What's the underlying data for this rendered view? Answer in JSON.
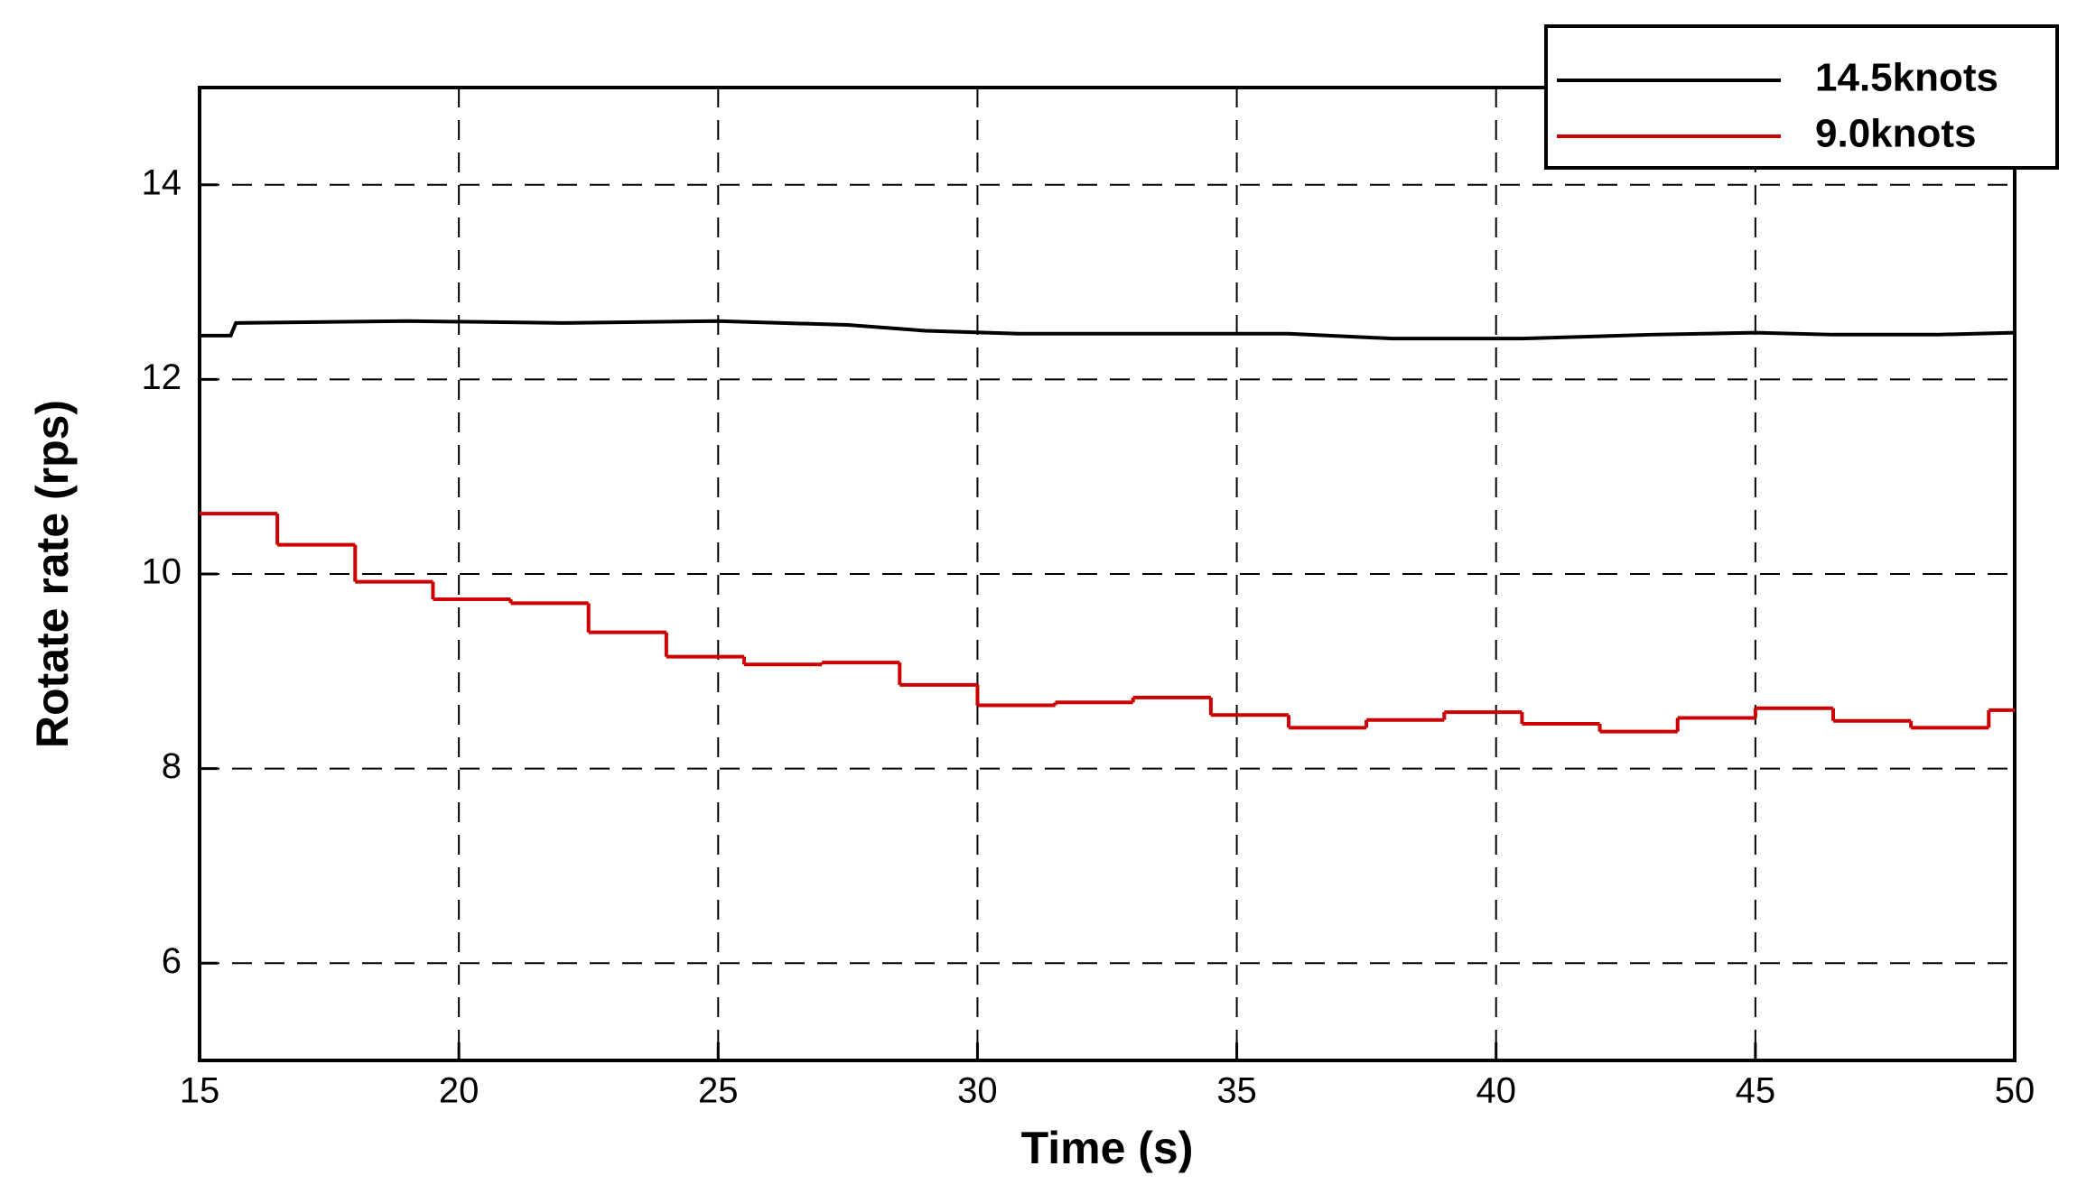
{
  "chart_data": {
    "type": "line",
    "xlabel": "Time (s)",
    "ylabel": "Rotate rate (rps)",
    "xlim": [
      15,
      50
    ],
    "ylim": [
      5,
      15
    ],
    "xticks": [
      15,
      20,
      25,
      30,
      35,
      40,
      45,
      50
    ],
    "yticks": [
      6,
      8,
      10,
      12,
      14
    ],
    "grid": true,
    "grid_style": "dashed",
    "legend": "upper right",
    "series": [
      {
        "name": "14.5knots",
        "color": "#000000",
        "drawstyle": "default",
        "x": [
          15,
          15.6,
          15.7,
          19,
          22,
          25,
          27.5,
          29,
          30.8,
          36,
          38,
          40.5,
          43,
          45,
          46.5,
          48.5,
          50
        ],
        "values": [
          12.45,
          12.45,
          12.58,
          12.6,
          12.58,
          12.6,
          12.56,
          12.5,
          12.47,
          12.47,
          12.42,
          12.42,
          12.46,
          12.48,
          12.46,
          12.46,
          12.48
        ]
      },
      {
        "name": "9.0knots",
        "color": "#cc0000",
        "drawstyle": "steps-post",
        "x": [
          15,
          16.5,
          18,
          19.5,
          21,
          22.5,
          24,
          25.5,
          27,
          28.5,
          30,
          31.5,
          33,
          34.5,
          36,
          37.5,
          39,
          40.5,
          42,
          43.5,
          45,
          46.5,
          48,
          49.5
        ],
        "values": [
          10.62,
          10.3,
          9.92,
          9.74,
          9.7,
          9.4,
          9.15,
          9.07,
          9.09,
          8.86,
          8.65,
          8.68,
          8.73,
          8.55,
          8.42,
          8.5,
          8.58,
          8.46,
          8.38,
          8.52,
          8.62,
          8.49,
          8.42,
          8.6
        ]
      }
    ]
  }
}
